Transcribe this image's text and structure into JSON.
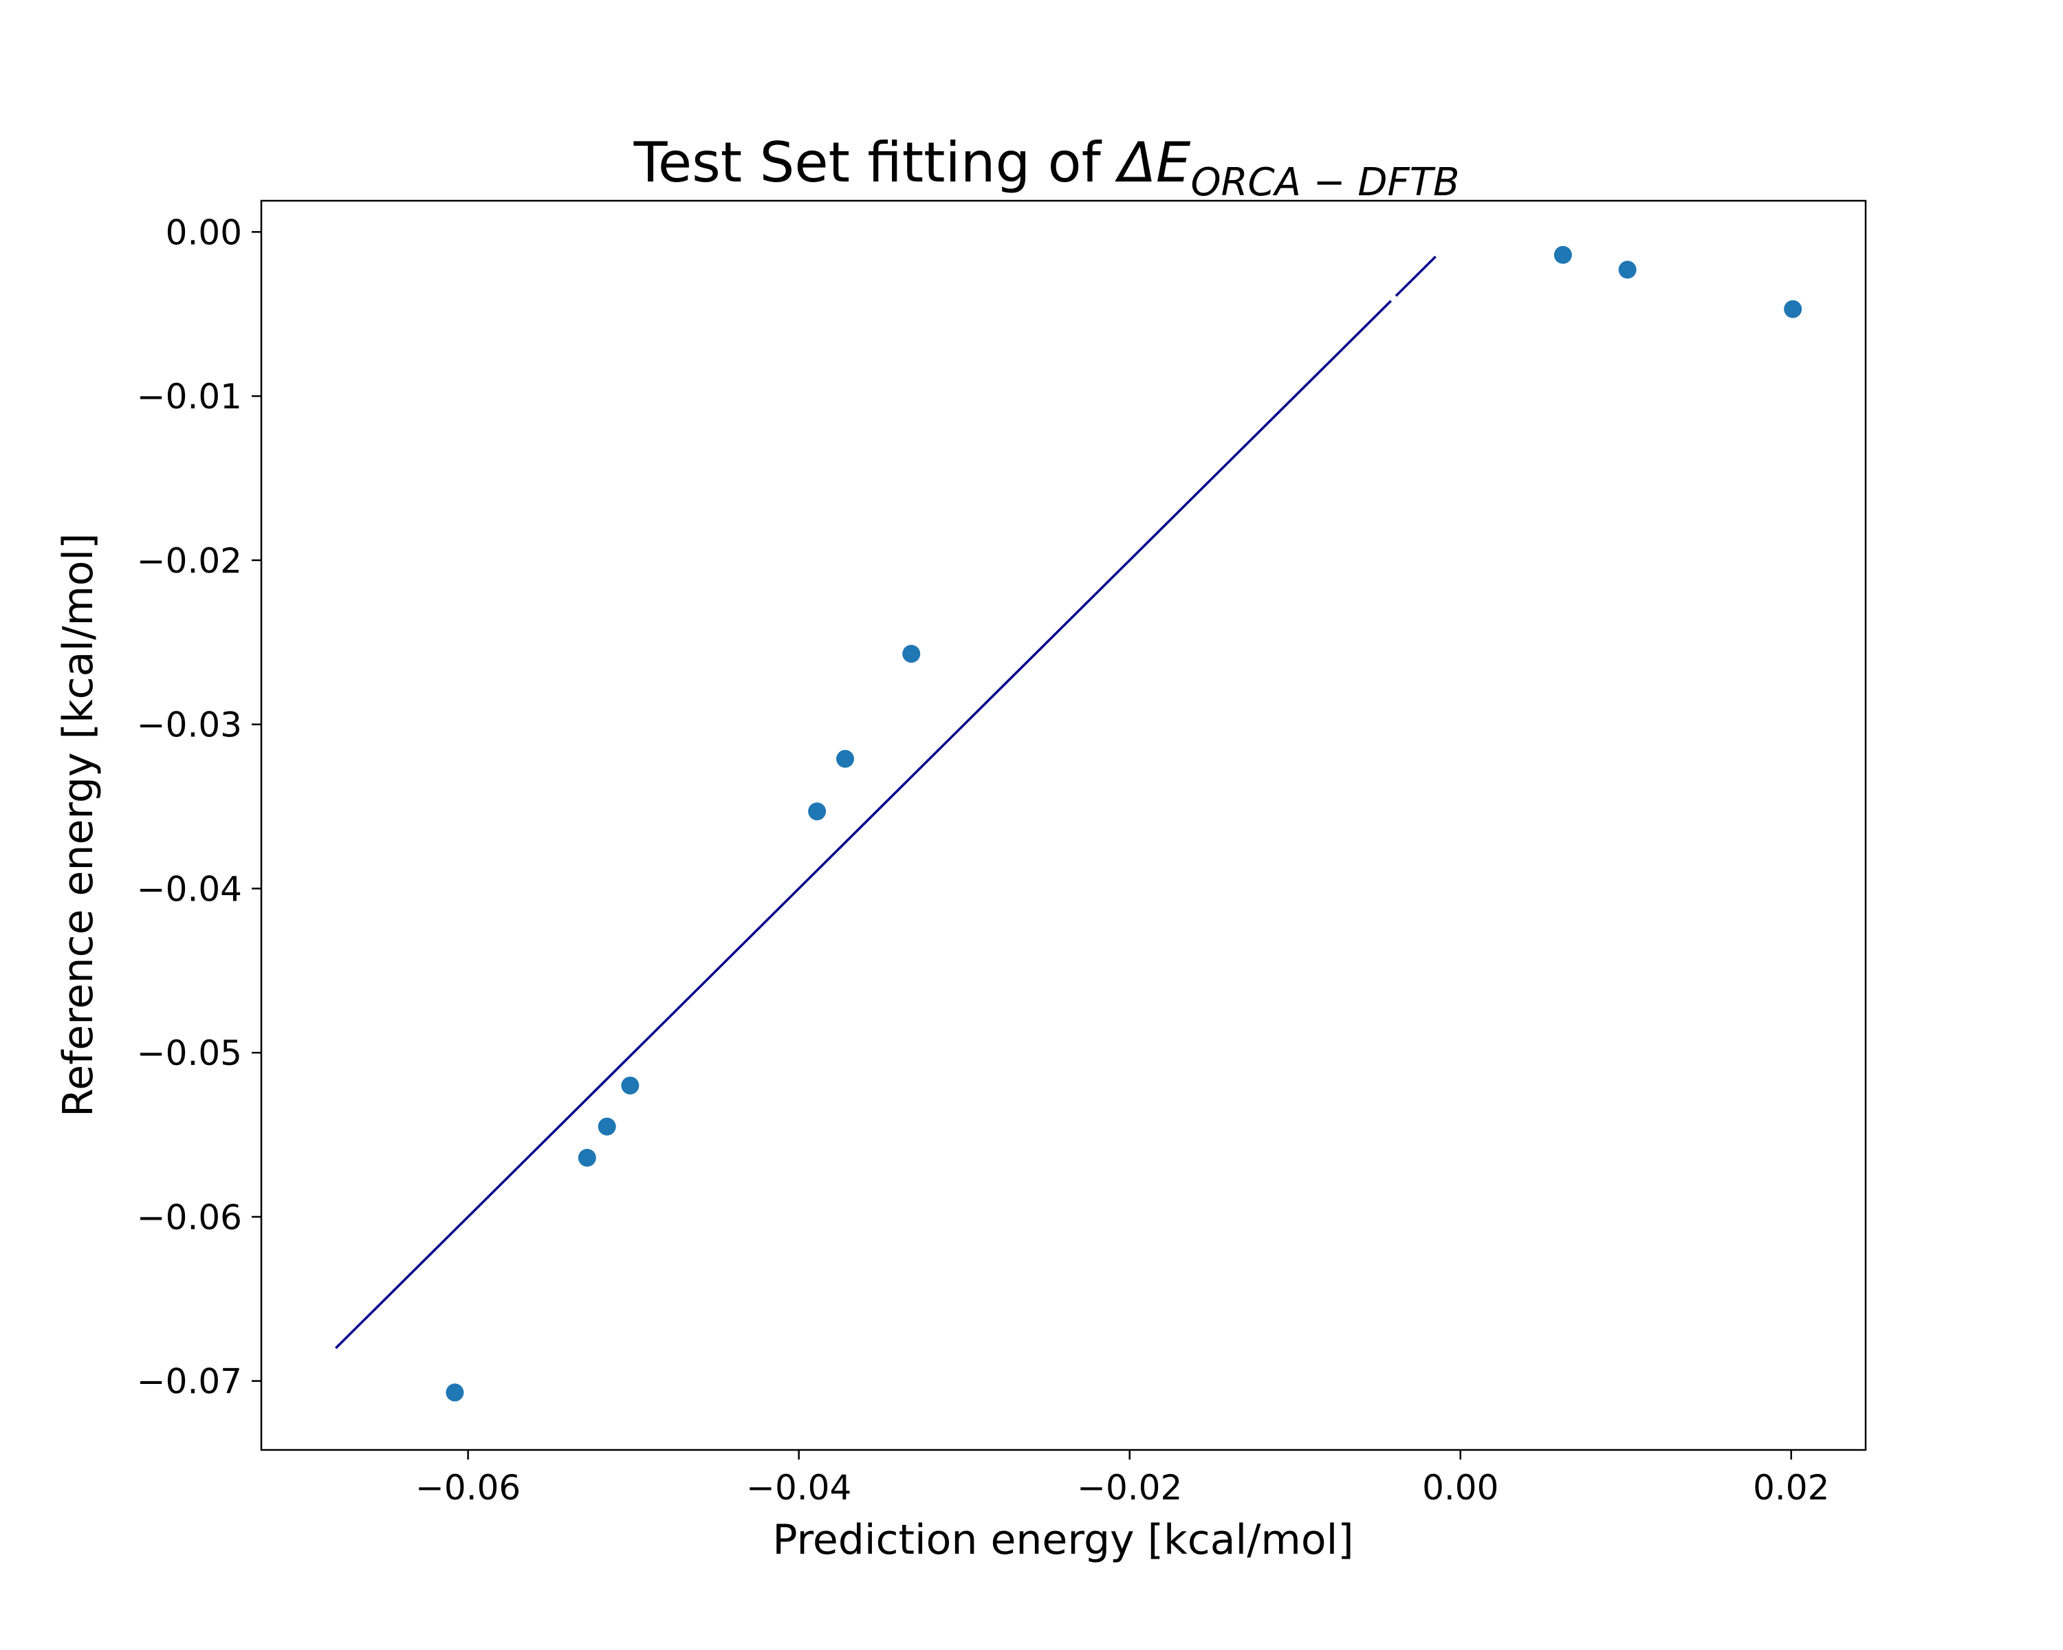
{
  "chart_data": {
    "type": "scatter",
    "title": {
      "prefix": "Test Set fitting of ",
      "symbol": "ΔE",
      "subscript": "ORCA − DFTB"
    },
    "xlabel": "Prediction energy [kcal/mol]",
    "ylabel": "Reference energy [kcal/mol]",
    "xlim": [
      -0.0725,
      0.0245
    ],
    "ylim": [
      -0.0742,
      0.0019
    ],
    "xticks": [
      -0.06,
      -0.04,
      -0.02,
      0.0,
      0.02
    ],
    "xtick_labels": [
      "−0.06",
      "−0.04",
      "−0.02",
      "0.00",
      "0.02"
    ],
    "yticks": [
      0.0,
      -0.01,
      -0.02,
      -0.03,
      -0.04,
      -0.05,
      -0.06,
      -0.07
    ],
    "ytick_labels": [
      "0.00",
      "−0.01",
      "−0.02",
      "−0.03",
      "−0.04",
      "−0.05",
      "−0.06",
      "−0.07"
    ],
    "grid": false,
    "point_color": "#1f77b4",
    "line_color": "#00008b",
    "points": [
      {
        "x": -0.0608,
        "y": -0.0707
      },
      {
        "x": -0.0528,
        "y": -0.0564
      },
      {
        "x": -0.0516,
        "y": -0.0545
      },
      {
        "x": -0.0502,
        "y": -0.052
      },
      {
        "x": -0.0389,
        "y": -0.0353
      },
      {
        "x": -0.0372,
        "y": -0.0321
      },
      {
        "x": -0.0332,
        "y": -0.0257
      },
      {
        "x": 0.0062,
        "y": -0.0014
      },
      {
        "x": 0.0101,
        "y": -0.0023
      },
      {
        "x": 0.0201,
        "y": -0.0047
      }
    ],
    "reference_line": {
      "x": [
        -0.068,
        -0.0015
      ],
      "y": [
        -0.068,
        -0.0015
      ],
      "gap": [
        -0.0042,
        -0.0039
      ]
    }
  }
}
